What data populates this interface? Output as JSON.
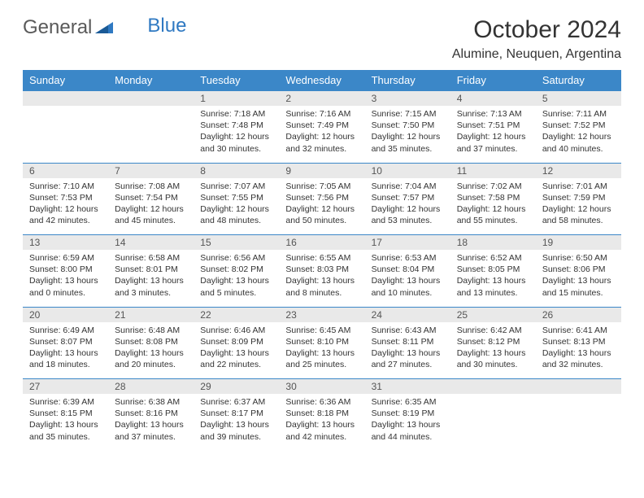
{
  "logo": {
    "part1": "General",
    "part2": "Blue"
  },
  "title": "October 2024",
  "location": "Alumine, Neuquen, Argentina",
  "colors": {
    "header_bg": "#3b87c8",
    "header_text": "#ffffff",
    "daynum_bg": "#e9e9e9",
    "border": "#3b87c8",
    "logo_blue": "#2f79c2",
    "text": "#333333"
  },
  "days": [
    "Sunday",
    "Monday",
    "Tuesday",
    "Wednesday",
    "Thursday",
    "Friday",
    "Saturday"
  ],
  "weeks": [
    [
      null,
      null,
      {
        "n": "1",
        "sr": "7:18 AM",
        "ss": "7:48 PM",
        "dl": "12 hours and 30 minutes."
      },
      {
        "n": "2",
        "sr": "7:16 AM",
        "ss": "7:49 PM",
        "dl": "12 hours and 32 minutes."
      },
      {
        "n": "3",
        "sr": "7:15 AM",
        "ss": "7:50 PM",
        "dl": "12 hours and 35 minutes."
      },
      {
        "n": "4",
        "sr": "7:13 AM",
        "ss": "7:51 PM",
        "dl": "12 hours and 37 minutes."
      },
      {
        "n": "5",
        "sr": "7:11 AM",
        "ss": "7:52 PM",
        "dl": "12 hours and 40 minutes."
      }
    ],
    [
      {
        "n": "6",
        "sr": "7:10 AM",
        "ss": "7:53 PM",
        "dl": "12 hours and 42 minutes."
      },
      {
        "n": "7",
        "sr": "7:08 AM",
        "ss": "7:54 PM",
        "dl": "12 hours and 45 minutes."
      },
      {
        "n": "8",
        "sr": "7:07 AM",
        "ss": "7:55 PM",
        "dl": "12 hours and 48 minutes."
      },
      {
        "n": "9",
        "sr": "7:05 AM",
        "ss": "7:56 PM",
        "dl": "12 hours and 50 minutes."
      },
      {
        "n": "10",
        "sr": "7:04 AM",
        "ss": "7:57 PM",
        "dl": "12 hours and 53 minutes."
      },
      {
        "n": "11",
        "sr": "7:02 AM",
        "ss": "7:58 PM",
        "dl": "12 hours and 55 minutes."
      },
      {
        "n": "12",
        "sr": "7:01 AM",
        "ss": "7:59 PM",
        "dl": "12 hours and 58 minutes."
      }
    ],
    [
      {
        "n": "13",
        "sr": "6:59 AM",
        "ss": "8:00 PM",
        "dl": "13 hours and 0 minutes."
      },
      {
        "n": "14",
        "sr": "6:58 AM",
        "ss": "8:01 PM",
        "dl": "13 hours and 3 minutes."
      },
      {
        "n": "15",
        "sr": "6:56 AM",
        "ss": "8:02 PM",
        "dl": "13 hours and 5 minutes."
      },
      {
        "n": "16",
        "sr": "6:55 AM",
        "ss": "8:03 PM",
        "dl": "13 hours and 8 minutes."
      },
      {
        "n": "17",
        "sr": "6:53 AM",
        "ss": "8:04 PM",
        "dl": "13 hours and 10 minutes."
      },
      {
        "n": "18",
        "sr": "6:52 AM",
        "ss": "8:05 PM",
        "dl": "13 hours and 13 minutes."
      },
      {
        "n": "19",
        "sr": "6:50 AM",
        "ss": "8:06 PM",
        "dl": "13 hours and 15 minutes."
      }
    ],
    [
      {
        "n": "20",
        "sr": "6:49 AM",
        "ss": "8:07 PM",
        "dl": "13 hours and 18 minutes."
      },
      {
        "n": "21",
        "sr": "6:48 AM",
        "ss": "8:08 PM",
        "dl": "13 hours and 20 minutes."
      },
      {
        "n": "22",
        "sr": "6:46 AM",
        "ss": "8:09 PM",
        "dl": "13 hours and 22 minutes."
      },
      {
        "n": "23",
        "sr": "6:45 AM",
        "ss": "8:10 PM",
        "dl": "13 hours and 25 minutes."
      },
      {
        "n": "24",
        "sr": "6:43 AM",
        "ss": "8:11 PM",
        "dl": "13 hours and 27 minutes."
      },
      {
        "n": "25",
        "sr": "6:42 AM",
        "ss": "8:12 PM",
        "dl": "13 hours and 30 minutes."
      },
      {
        "n": "26",
        "sr": "6:41 AM",
        "ss": "8:13 PM",
        "dl": "13 hours and 32 minutes."
      }
    ],
    [
      {
        "n": "27",
        "sr": "6:39 AM",
        "ss": "8:15 PM",
        "dl": "13 hours and 35 minutes."
      },
      {
        "n": "28",
        "sr": "6:38 AM",
        "ss": "8:16 PM",
        "dl": "13 hours and 37 minutes."
      },
      {
        "n": "29",
        "sr": "6:37 AM",
        "ss": "8:17 PM",
        "dl": "13 hours and 39 minutes."
      },
      {
        "n": "30",
        "sr": "6:36 AM",
        "ss": "8:18 PM",
        "dl": "13 hours and 42 minutes."
      },
      {
        "n": "31",
        "sr": "6:35 AM",
        "ss": "8:19 PM",
        "dl": "13 hours and 44 minutes."
      },
      null,
      null
    ]
  ],
  "labels": {
    "sunrise": "Sunrise: ",
    "sunset": "Sunset: ",
    "daylight": "Daylight: "
  }
}
